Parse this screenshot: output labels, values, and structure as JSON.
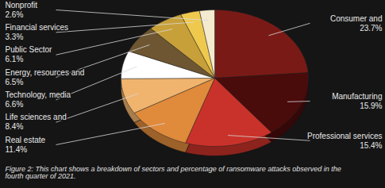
{
  "chart_data": {
    "type": "pie",
    "caption": "Figure 2: This chart shows a breakdown of sectors and percentage of ransomware attacks observed in the fourth quarter of 2021.",
    "categories": [
      "Consumer and",
      "Manufacturing",
      "Professional services",
      "Real estate",
      "Life sciences and",
      "Technology, media",
      "Energy, resources and",
      "Public Sector",
      "Financial services",
      "Nonprofit"
    ],
    "values": [
      23.7,
      15.9,
      15.4,
      11.4,
      8.4,
      6.6,
      6.5,
      6.1,
      3.3,
      2.6
    ],
    "value_labels": [
      "23.7%",
      "15.9%",
      "15.4%",
      "11.4%",
      "8.4%",
      "6.6%",
      "6.5%",
      "6.1%",
      "3.3%",
      "2.6%"
    ],
    "colors": [
      "#7a1a16",
      "#4a0b0b",
      "#c9322a",
      "#e08a3c",
      "#f0b46e",
      "#ffffff",
      "#6e5632",
      "#c7a03a",
      "#efc94e",
      "#f4ead0"
    ],
    "data_labels": true
  }
}
